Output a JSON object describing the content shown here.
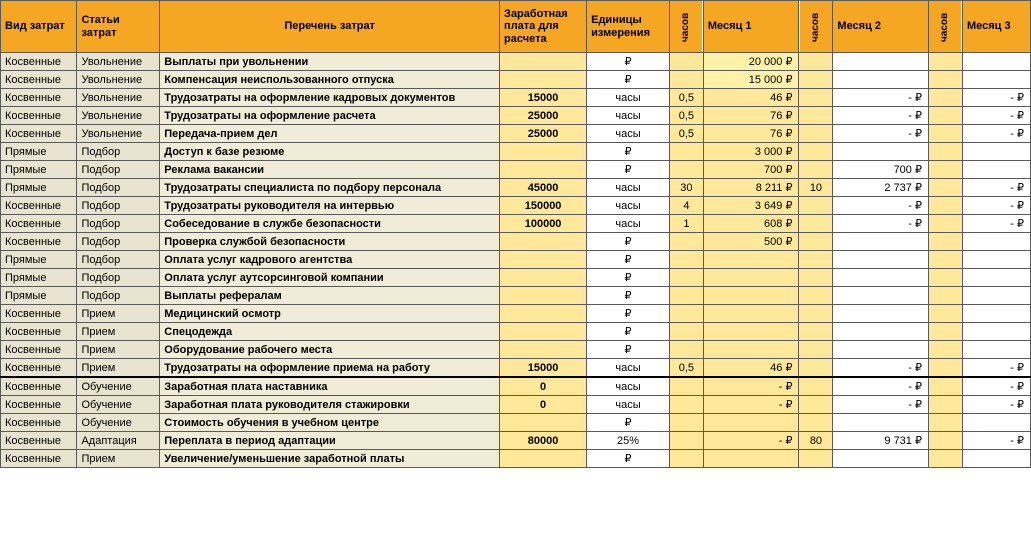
{
  "headers": {
    "vid": "Вид затрат",
    "stat": "Статьи затрат",
    "desc": "Перечень затрат",
    "zp": "Заработная плата для расчета",
    "unit": "Единицы измерения",
    "hours": "часов",
    "m1": "Месяц 1",
    "m2": "Месяц 2",
    "m3": "Месяц 3"
  },
  "colors": {
    "header_bg": "#f5a623",
    "col_a_bg": "#e8e4d0",
    "col_desc_bg": "#f0ecd8",
    "col_yellow_bg": "#ffe89a",
    "highlight_bg": "#fff2a8",
    "border": "#5a5a5a"
  },
  "rows": [
    {
      "vid": "Косвенные",
      "stat": "Увольнение",
      "desc": "Выплаты при увольнении",
      "zp": "",
      "unit": "₽",
      "h1": "",
      "m1": "20 000 ₽",
      "m1_hl": true,
      "h2": "",
      "m2": "",
      "h3": "",
      "m3": ""
    },
    {
      "vid": "Косвенные",
      "stat": "Увольнение",
      "desc": "Компенсация неиспользованного отпуска",
      "zp": "",
      "unit": "₽",
      "h1": "",
      "m1": "15 000 ₽",
      "m1_hl": true,
      "h2": "",
      "m2": "",
      "h3": "",
      "m3": ""
    },
    {
      "vid": "Косвенные",
      "stat": "Увольнение",
      "desc": "Трудозатраты на оформление кадровых документов",
      "zp": "15000",
      "unit": "часы",
      "h1": "0,5",
      "m1": "46 ₽",
      "h2": "",
      "m2": "-   ₽",
      "h3": "",
      "m3": "-   ₽"
    },
    {
      "vid": "Косвенные",
      "stat": "Увольнение",
      "desc": "Трудозатраты на оформление расчета",
      "zp": "25000",
      "unit": "часы",
      "h1": "0,5",
      "m1": "76 ₽",
      "h2": "",
      "m2": "-   ₽",
      "h3": "",
      "m3": "-   ₽"
    },
    {
      "vid": "Косвенные",
      "stat": "Увольнение",
      "desc": "Передача-прием дел",
      "zp": "25000",
      "unit": "часы",
      "h1": "0,5",
      "m1": "76 ₽",
      "h2": "",
      "m2": "-   ₽",
      "h3": "",
      "m3": "-   ₽"
    },
    {
      "vid": "Прямые",
      "stat": "Подбор",
      "desc": "Доступ к базе резюме",
      "zp": "",
      "unit": "₽",
      "h1": "",
      "m1": "3 000 ₽",
      "h2": "",
      "m2": "",
      "h3": "",
      "m3": ""
    },
    {
      "vid": "Прямые",
      "stat": "Подбор",
      "desc": "Реклама вакансии",
      "zp": "",
      "unit": "₽",
      "h1": "",
      "m1": "700 ₽",
      "h2": "",
      "m2": "700 ₽",
      "h3": "",
      "m3": ""
    },
    {
      "vid": "Прямые",
      "stat": "Подбор",
      "desc": "Трудозатраты специалиста по подбору персонала",
      "zp": "45000",
      "unit": "часы",
      "h1": "30",
      "m1": "8 211 ₽",
      "h2": "10",
      "m2": "2 737 ₽",
      "h3": "",
      "m3": "-   ₽"
    },
    {
      "vid": "Косвенные",
      "stat": "Подбор",
      "desc": "Трудозатраты руководителя на интервью",
      "zp": "150000",
      "unit": "часы",
      "h1": "4",
      "m1": "3 649 ₽",
      "h2": "",
      "m2": "-   ₽",
      "h3": "",
      "m3": "-   ₽"
    },
    {
      "vid": "Косвенные",
      "stat": "Подбор",
      "desc": "Собеседование в службе безопасности",
      "zp": "100000",
      "unit": "часы",
      "h1": "1",
      "m1": "608 ₽",
      "h2": "",
      "m2": "-   ₽",
      "h3": "",
      "m3": "-   ₽"
    },
    {
      "vid": "Косвенные",
      "stat": "Подбор",
      "desc": "Проверка службой безопасности",
      "zp": "",
      "unit": "₽",
      "h1": "",
      "m1": "500 ₽",
      "h2": "",
      "m2": "",
      "h3": "",
      "m3": ""
    },
    {
      "vid": "Прямые",
      "stat": "Подбор",
      "desc": "Оплата услуг кадрового агентства",
      "zp": "",
      "unit": "₽",
      "h1": "",
      "m1": "",
      "h2": "",
      "m2": "",
      "h3": "",
      "m3": ""
    },
    {
      "vid": "Прямые",
      "stat": "Подбор",
      "desc": "Оплата услуг аутсорсинговой компании",
      "zp": "",
      "unit": "₽",
      "h1": "",
      "m1": "",
      "h2": "",
      "m2": "",
      "h3": "",
      "m3": ""
    },
    {
      "vid": "Прямые",
      "stat": "Подбор",
      "desc": "Выплаты рефералам",
      "zp": "",
      "unit": "₽",
      "h1": "",
      "m1": "",
      "h2": "",
      "m2": "",
      "h3": "",
      "m3": ""
    },
    {
      "vid": "Косвенные",
      "stat": "Прием",
      "desc": "Медицинский осмотр",
      "zp": "",
      "unit": "₽",
      "h1": "",
      "m1": "",
      "h2": "",
      "m2": "",
      "h3": "",
      "m3": ""
    },
    {
      "vid": "Косвенные",
      "stat": "Прием",
      "desc": "Спецодежда",
      "zp": "",
      "unit": "₽",
      "h1": "",
      "m1": "",
      "h2": "",
      "m2": "",
      "h3": "",
      "m3": ""
    },
    {
      "vid": "Косвенные",
      "stat": "Прием",
      "desc": "Оборудование рабочего места",
      "zp": "",
      "unit": "₽",
      "h1": "",
      "m1": "",
      "h2": "",
      "m2": "",
      "h3": "",
      "m3": ""
    },
    {
      "vid": "Косвенные",
      "stat": "Прием",
      "desc": "Трудозатраты на оформление приема на работу",
      "zp": "15000",
      "unit": "часы",
      "h1": "0,5",
      "m1": "46 ₽",
      "h2": "",
      "m2": "-   ₽",
      "h3": "",
      "m3": "-   ₽"
    },
    {
      "vid": "Косвенные",
      "stat": "Обучение",
      "desc": "Заработная плата наставника",
      "zp": "0",
      "unit": "часы",
      "h1": "",
      "m1": "-   ₽",
      "h2": "",
      "m2": "-   ₽",
      "h3": "",
      "m3": "-   ₽",
      "sep": true
    },
    {
      "vid": "Косвенные",
      "stat": "Обучение",
      "desc": "Заработная плата руководителя стажировки",
      "zp": "0",
      "unit": "часы",
      "h1": "",
      "m1": "-   ₽",
      "h2": "",
      "m2": "-   ₽",
      "h3": "",
      "m3": "-   ₽"
    },
    {
      "vid": "Косвенные",
      "stat": "Обучение",
      "desc": "Стоимость обучения в учебном центре",
      "zp": "",
      "unit": "₽",
      "h1": "",
      "m1": "",
      "h2": "",
      "m2": "",
      "h3": "",
      "m3": ""
    },
    {
      "vid": "Косвенные",
      "stat": "Адаптация",
      "desc": "Переплата в период адаптации",
      "zp": "80000",
      "unit": "25%",
      "h1": "",
      "m1": "-   ₽",
      "h2": "80",
      "m2": "9 731 ₽",
      "h3": "",
      "m3": "-   ₽"
    },
    {
      "vid": "Косвенные",
      "stat": "Прием",
      "desc": "Увеличение/уменьшение заработной платы",
      "zp": "",
      "unit": "₽",
      "h1": "",
      "m1": "",
      "h2": "",
      "m2": "",
      "h3": "",
      "m3": ""
    }
  ]
}
